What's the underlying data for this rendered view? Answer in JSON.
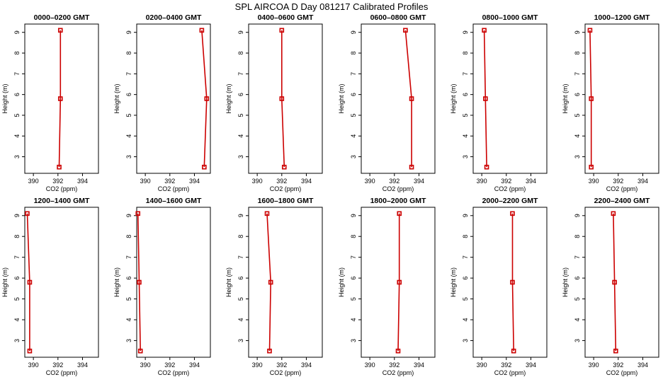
{
  "title": "SPL AIRCOA D  Day 081217  Calibrated Profiles",
  "chart_data": [
    {
      "type": "line",
      "title": "0000–0200 GMT",
      "xlabel": "CO2 (ppm)",
      "ylabel": "Height (m)",
      "xlim": [
        389.3,
        395.3
      ],
      "ylim": [
        2.2,
        9.4
      ],
      "xticks": [
        390,
        392,
        394
      ],
      "yticks": [
        3,
        4,
        5,
        6,
        7,
        8,
        9
      ],
      "series": [
        {
          "x": [
            392.1,
            392.2,
            392.2
          ],
          "y": [
            2.5,
            5.8,
            9.1
          ]
        }
      ]
    },
    {
      "type": "line",
      "title": "0200–0400 GMT",
      "xlabel": "CO2 (ppm)",
      "ylabel": "Height (m)",
      "xlim": [
        389.3,
        395.3
      ],
      "ylim": [
        2.2,
        9.4
      ],
      "xticks": [
        390,
        392,
        394
      ],
      "yticks": [
        3,
        4,
        5,
        6,
        7,
        8,
        9
      ],
      "series": [
        {
          "x": [
            394.8,
            395.0,
            394.6
          ],
          "y": [
            2.5,
            5.8,
            9.1
          ]
        }
      ]
    },
    {
      "type": "line",
      "title": "0400–0600 GMT",
      "xlabel": "CO2 (ppm)",
      "ylabel": "Height (m)",
      "xlim": [
        389.3,
        395.3
      ],
      "ylim": [
        2.2,
        9.4
      ],
      "xticks": [
        390,
        392,
        394
      ],
      "yticks": [
        3,
        4,
        5,
        6,
        7,
        8,
        9
      ],
      "series": [
        {
          "x": [
            392.2,
            392.0,
            392.0
          ],
          "y": [
            2.5,
            5.8,
            9.1
          ]
        }
      ]
    },
    {
      "type": "line",
      "title": "0600–0800 GMT",
      "xlabel": "CO2 (ppm)",
      "ylabel": "Height (m)",
      "xlim": [
        389.3,
        395.3
      ],
      "ylim": [
        2.2,
        9.4
      ],
      "xticks": [
        390,
        392,
        394
      ],
      "yticks": [
        3,
        4,
        5,
        6,
        7,
        8,
        9
      ],
      "series": [
        {
          "x": [
            393.4,
            393.4,
            392.9
          ],
          "y": [
            2.5,
            5.8,
            9.1
          ]
        }
      ]
    },
    {
      "type": "line",
      "title": "0800–1000 GMT",
      "xlabel": "CO2 (ppm)",
      "ylabel": "Height (m)",
      "xlim": [
        389.3,
        395.3
      ],
      "ylim": [
        2.2,
        9.4
      ],
      "xticks": [
        390,
        392,
        394
      ],
      "yticks": [
        3,
        4,
        5,
        6,
        7,
        8,
        9
      ],
      "series": [
        {
          "x": [
            390.4,
            390.3,
            390.2
          ],
          "y": [
            2.5,
            5.8,
            9.1
          ]
        }
      ]
    },
    {
      "type": "line",
      "title": "1000–1200 GMT",
      "xlabel": "CO2 (ppm)",
      "ylabel": "Height (m)",
      "xlim": [
        389.3,
        395.3
      ],
      "ylim": [
        2.2,
        9.4
      ],
      "xticks": [
        390,
        392,
        394
      ],
      "yticks": [
        3,
        4,
        5,
        6,
        7,
        8,
        9
      ],
      "series": [
        {
          "x": [
            389.8,
            389.8,
            389.7
          ],
          "y": [
            2.5,
            5.8,
            9.1
          ]
        }
      ]
    },
    {
      "type": "line",
      "title": "1200–1400 GMT",
      "xlabel": "CO2 (ppm)",
      "ylabel": "Height (m)",
      "xlim": [
        389.3,
        395.3
      ],
      "ylim": [
        2.2,
        9.4
      ],
      "xticks": [
        390,
        392,
        394
      ],
      "yticks": [
        3,
        4,
        5,
        6,
        7,
        8,
        9
      ],
      "series": [
        {
          "x": [
            389.7,
            389.7,
            389.5
          ],
          "y": [
            2.5,
            5.8,
            9.1
          ]
        }
      ]
    },
    {
      "type": "line",
      "title": "1400–1600 GMT",
      "xlabel": "CO2 (ppm)",
      "ylabel": "Height (m)",
      "xlim": [
        389.3,
        395.3
      ],
      "ylim": [
        2.2,
        9.4
      ],
      "xticks": [
        390,
        392,
        394
      ],
      "yticks": [
        3,
        4,
        5,
        6,
        7,
        8,
        9
      ],
      "series": [
        {
          "x": [
            389.6,
            389.5,
            389.4
          ],
          "y": [
            2.5,
            5.8,
            9.1
          ]
        }
      ]
    },
    {
      "type": "line",
      "title": "1600–1800 GMT",
      "xlabel": "CO2 (ppm)",
      "ylabel": "Height (m)",
      "xlim": [
        389.3,
        395.3
      ],
      "ylim": [
        2.2,
        9.4
      ],
      "xticks": [
        390,
        392,
        394
      ],
      "yticks": [
        3,
        4,
        5,
        6,
        7,
        8,
        9
      ],
      "series": [
        {
          "x": [
            391.0,
            391.1,
            390.8
          ],
          "y": [
            2.5,
            5.8,
            9.1
          ]
        }
      ]
    },
    {
      "type": "line",
      "title": "1800–2000 GMT",
      "xlabel": "CO2 (ppm)",
      "ylabel": "Height (m)",
      "xlim": [
        389.3,
        395.3
      ],
      "ylim": [
        2.2,
        9.4
      ],
      "xticks": [
        390,
        392,
        394
      ],
      "yticks": [
        3,
        4,
        5,
        6,
        7,
        8,
        9
      ],
      "series": [
        {
          "x": [
            392.3,
            392.4,
            392.4
          ],
          "y": [
            2.5,
            5.8,
            9.1
          ]
        }
      ]
    },
    {
      "type": "line",
      "title": "2000–2200 GMT",
      "xlabel": "CO2 (ppm)",
      "ylabel": "Height (m)",
      "xlim": [
        389.3,
        395.3
      ],
      "ylim": [
        2.2,
        9.4
      ],
      "xticks": [
        390,
        392,
        394
      ],
      "yticks": [
        3,
        4,
        5,
        6,
        7,
        8,
        9
      ],
      "series": [
        {
          "x": [
            392.6,
            392.5,
            392.5
          ],
          "y": [
            2.5,
            5.8,
            9.1
          ]
        }
      ]
    },
    {
      "type": "line",
      "title": "2200–2400 GMT",
      "xlabel": "CO2 (ppm)",
      "ylabel": "Height (m)",
      "xlim": [
        389.3,
        395.3
      ],
      "ylim": [
        2.2,
        9.4
      ],
      "xticks": [
        390,
        392,
        394
      ],
      "yticks": [
        3,
        4,
        5,
        6,
        7,
        8,
        9
      ],
      "series": [
        {
          "x": [
            391.8,
            391.7,
            391.6
          ],
          "y": [
            2.5,
            5.8,
            9.1
          ]
        }
      ]
    }
  ],
  "colors": {
    "series": "#cc0000",
    "axes": "#000000",
    "background": "#ffffff"
  }
}
